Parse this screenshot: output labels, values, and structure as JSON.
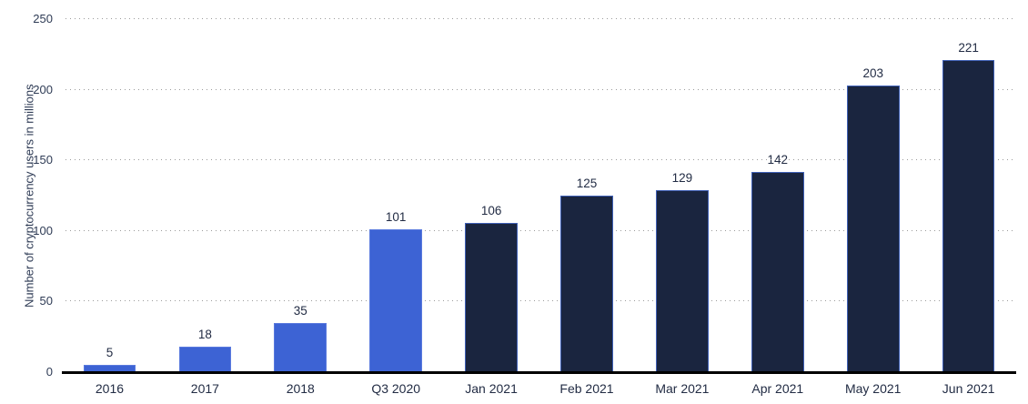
{
  "chart_data": {
    "type": "bar",
    "title": "",
    "xlabel": "",
    "ylabel": "Number of cryptocurrency users in millions",
    "categories": [
      "2016",
      "2017",
      "2018",
      "Q3 2020",
      "Jan 2021",
      "Feb 2021",
      "Mar 2021",
      "Apr 2021",
      "May 2021",
      "Jun 2021"
    ],
    "values": [
      5,
      18,
      35,
      101,
      106,
      125,
      129,
      142,
      203,
      221
    ],
    "ylim": [
      0,
      250
    ],
    "yticks": [
      0,
      50,
      100,
      150,
      200,
      250
    ],
    "grid": "horizontal-dotted",
    "legend": "none",
    "point_colors": [
      "highlight",
      "highlight",
      "highlight",
      "highlight",
      "dark",
      "dark",
      "dark",
      "dark",
      "dark",
      "dark"
    ],
    "colors": {
      "highlight": "#3d63d4",
      "highlight_border": "#5a7ade",
      "dark": "#1a253f",
      "dark_border": "#3e5fb5",
      "gridline": "#9b9b9b",
      "axis": "#000000",
      "text": "#222c44"
    }
  }
}
